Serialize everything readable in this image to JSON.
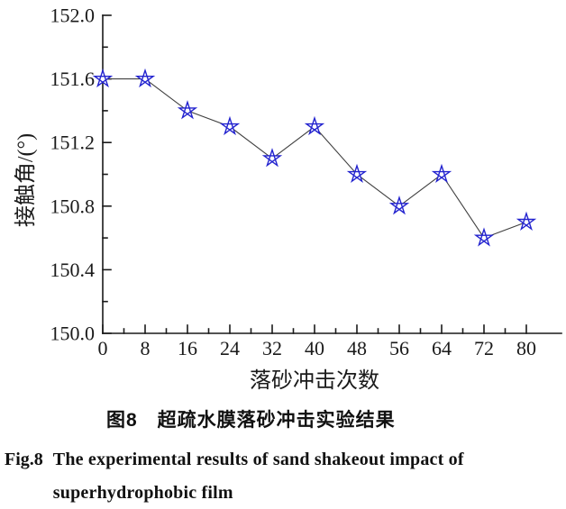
{
  "chart_data": {
    "type": "line",
    "x": [
      0,
      8,
      16,
      24,
      32,
      40,
      48,
      56,
      64,
      72,
      80
    ],
    "y": [
      151.6,
      151.6,
      151.4,
      151.3,
      151.1,
      151.3,
      151.0,
      150.8,
      151.0,
      150.6,
      150.7
    ],
    "xlabel": "落砂冲击次数",
    "ylabel": "接触角/(°)",
    "xlim": [
      0,
      80
    ],
    "ylim": [
      150.0,
      152.0
    ],
    "xticks": {
      "major": [
        0,
        8,
        16,
        24,
        32,
        40,
        48,
        56,
        64,
        72,
        80
      ],
      "labels": [
        "0",
        "8",
        "16",
        "24",
        "32",
        "40",
        "48",
        "56",
        "64",
        "72",
        "80"
      ],
      "minor": [
        4,
        12,
        20,
        28,
        36,
        44,
        52,
        60,
        68,
        76
      ]
    },
    "yticks": {
      "major": [
        152.0,
        151.6,
        151.2,
        150.8,
        150.4,
        150.0
      ],
      "labels": [
        "152.0",
        "151.6",
        "151.2",
        "150.8",
        "150.4",
        "150.0"
      ],
      "minor": [
        151.8,
        151.4,
        151.0,
        150.6,
        150.2
      ]
    },
    "marker": "open-star",
    "marker_color": "#2323cf",
    "line_color": "#404040",
    "axis_color": "#1a1a1a",
    "grid": false,
    "legend": null,
    "title": ""
  },
  "caption": {
    "zh": "图8　超疏水膜落砂冲击实验结果",
    "en_label": "Fig.8",
    "en_line1": "The experimental results of sand shakeout impact of",
    "en_line2": "superhydrophobic film"
  }
}
